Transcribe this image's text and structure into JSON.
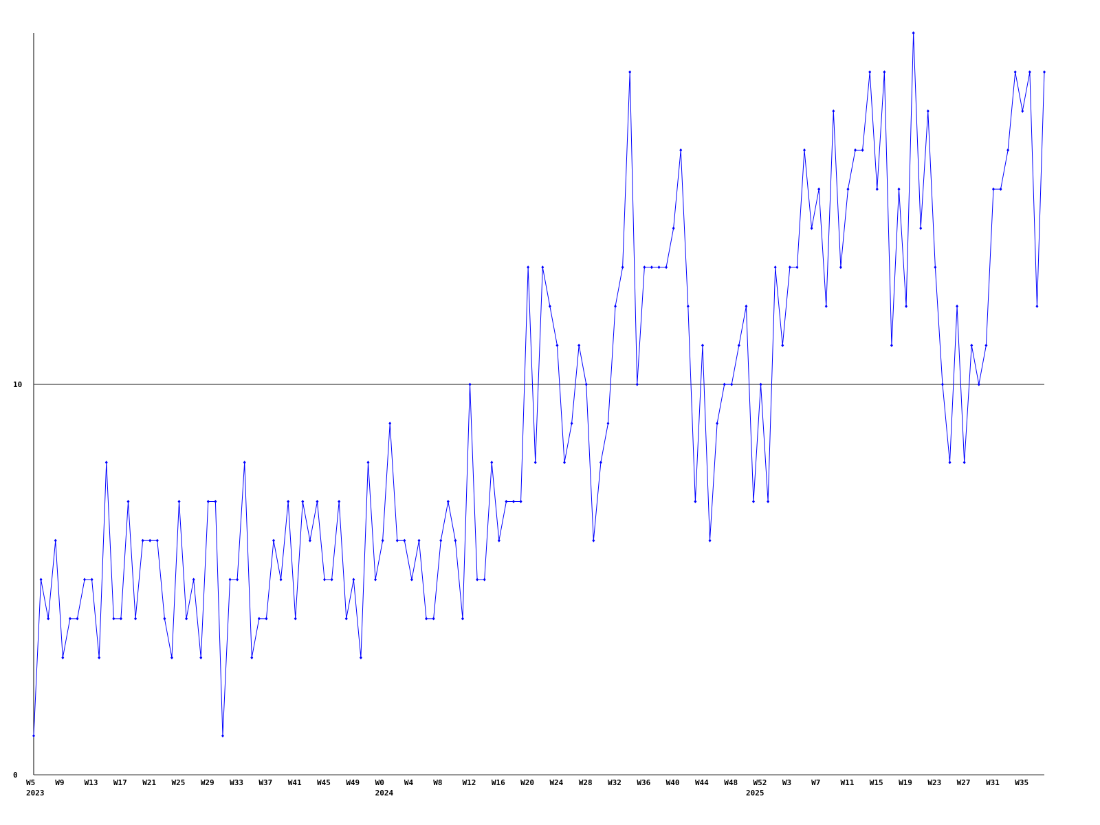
{
  "chart_data": {
    "type": "line",
    "categories": [
      "W5",
      null,
      null,
      null,
      "W9",
      null,
      null,
      null,
      "W13",
      null,
      null,
      null,
      "W17",
      null,
      null,
      null,
      "W21",
      null,
      null,
      null,
      "W25",
      null,
      null,
      null,
      "W29",
      null,
      null,
      null,
      "W33",
      null,
      null,
      null,
      "W37",
      null,
      null,
      null,
      "W41",
      null,
      null,
      null,
      "W45",
      null,
      null,
      null,
      "W49",
      null,
      null,
      null,
      "W0",
      null,
      null,
      null,
      "W4",
      null,
      null,
      null,
      "W8",
      null,
      null,
      null,
      "W12",
      null,
      null,
      null,
      "W16",
      null,
      null,
      null,
      "W20",
      null,
      null,
      null,
      "W24",
      null,
      null,
      null,
      "W28",
      null,
      null,
      null,
      "W32",
      null,
      null,
      null,
      "W36",
      null,
      null,
      null,
      "W40",
      null,
      null,
      null,
      "W44",
      null,
      null,
      null,
      "W48",
      null,
      null,
      null,
      "W52",
      null,
      null,
      null,
      "W3",
      null,
      null,
      null,
      "W7",
      null,
      null,
      null,
      "W11",
      null,
      null,
      null,
      "W15",
      null,
      null,
      null,
      "W19",
      null,
      null,
      null,
      "W23",
      null,
      null,
      null,
      "W27",
      null,
      null,
      null,
      "W31",
      null,
      null,
      null,
      "W35",
      null,
      null,
      null
    ],
    "year_categories": [
      "2023",
      null,
      null,
      null,
      null,
      null,
      null,
      null,
      null,
      null,
      null,
      null,
      null,
      null,
      null,
      null,
      null,
      null,
      null,
      null,
      null,
      null,
      null,
      null,
      null,
      null,
      null,
      null,
      null,
      null,
      null,
      null,
      null,
      null,
      null,
      null,
      null,
      null,
      null,
      null,
      null,
      null,
      null,
      null,
      null,
      null,
      null,
      null,
      "2024",
      null,
      null,
      null,
      null,
      null,
      null,
      null,
      null,
      null,
      null,
      null,
      null,
      null,
      null,
      null,
      null,
      null,
      null,
      null,
      null,
      null,
      null,
      null,
      null,
      null,
      null,
      null,
      null,
      null,
      null,
      null,
      null,
      null,
      null,
      null,
      null,
      null,
      null,
      null,
      null,
      null,
      null,
      null,
      null,
      null,
      null,
      null,
      null,
      null,
      null,
      "2025",
      null,
      null,
      null,
      null,
      null,
      null,
      null,
      null,
      null,
      null,
      null,
      null,
      null,
      null,
      null,
      null,
      null,
      null,
      null,
      null,
      null,
      null,
      null,
      null,
      null,
      null,
      null,
      null,
      null,
      null,
      null,
      null,
      null,
      null,
      null,
      null,
      null,
      null
    ],
    "series": [
      {
        "color": "#0000ff",
        "values": [
          1,
          5,
          4,
          6,
          3,
          4,
          4,
          5,
          5,
          3,
          8,
          4,
          4,
          7,
          4,
          6,
          6,
          6,
          4,
          3,
          7,
          4,
          5,
          3,
          7,
          7,
          1,
          5,
          5,
          8,
          3,
          4,
          4,
          6,
          5,
          7,
          4,
          7,
          6,
          7,
          5,
          5,
          7,
          4,
          5,
          3,
          8,
          5,
          6,
          9,
          6,
          6,
          5,
          6,
          4,
          4,
          6,
          7,
          6,
          4,
          10,
          5,
          5,
          8,
          6,
          7,
          7,
          7,
          13,
          8,
          13,
          12,
          11,
          8,
          9,
          11,
          10,
          6,
          8,
          9,
          12,
          13,
          18,
          10,
          13,
          13,
          13,
          13,
          14,
          16,
          12,
          7,
          11,
          6,
          9,
          10,
          10,
          11,
          12,
          7,
          10,
          7,
          13,
          11,
          13,
          13,
          16,
          14,
          15,
          12,
          17,
          13,
          15,
          16,
          16,
          18,
          15,
          18,
          11,
          15,
          12,
          19,
          14,
          17,
          13,
          10,
          8,
          12,
          8,
          11,
          10,
          11,
          15,
          15,
          16,
          18,
          17,
          18,
          12,
          18
        ]
      }
    ],
    "ylim": [
      0,
      19
    ],
    "yticks": [
      0,
      10
    ],
    "grid": true
  }
}
